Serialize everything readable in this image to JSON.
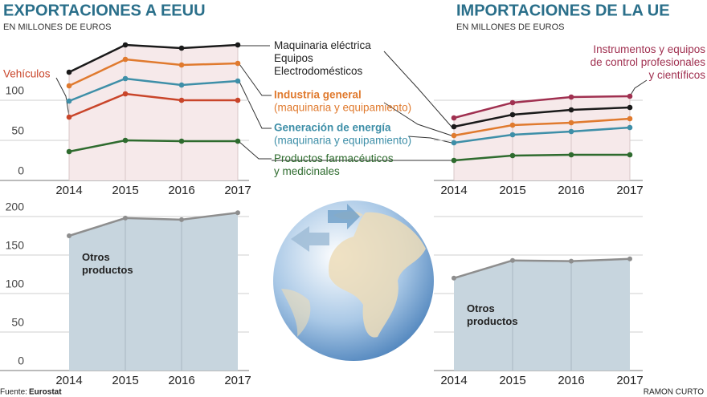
{
  "chart_data": [
    {
      "type": "line",
      "title": "EXPORTACIONES A EEUU",
      "subtitle": "EN MILLONES DE EUROS",
      "categories": [
        "2014",
        "2015",
        "2016",
        "2017"
      ],
      "ylim": [
        0,
        177
      ],
      "yticks": [
        0,
        50,
        100
      ],
      "grid": true,
      "tick_labels": true,
      "series": [
        {
          "name": "Maquinaria eléctrica\nEquipos\nElectrodomésticos",
          "color": "#1a1a1a",
          "values": [
            135,
            169,
            165,
            169
          ]
        },
        {
          "name": "Industria general",
          "detail": "(maquinaria y equipamiento)",
          "color": "#e07a2e",
          "values": [
            118,
            151,
            144,
            146
          ]
        },
        {
          "name": "Generación de energía",
          "detail": "(maquinaria y equipamiento)",
          "color": "#3e8fa8",
          "values": [
            99,
            127,
            119,
            124
          ]
        },
        {
          "name": "Vehículos",
          "color": "#c9452a",
          "values": [
            79,
            108,
            100,
            100
          ]
        },
        {
          "name": "Productos farmacéuticos\ny medicinales",
          "color": "#2e6b2e",
          "values": [
            36,
            50,
            49,
            49
          ]
        }
      ]
    },
    {
      "type": "line",
      "title": "IMPORTACIONES DE LA UE",
      "subtitle": "EN MILLONES DE EUROS",
      "categories": [
        "2014",
        "2015",
        "2016",
        "2017"
      ],
      "ylim": [
        0,
        177
      ],
      "yticks": [
        0,
        50,
        100
      ],
      "grid": true,
      "tick_labels": false,
      "series": [
        {
          "name": "Instrumentos y equipos\nde control profesionales\ny científicos",
          "color": "#a03050",
          "values": [
            78,
            97,
            104,
            105
          ]
        },
        {
          "color": "#1a1a1a",
          "values": [
            67,
            82,
            88,
            91
          ]
        },
        {
          "color": "#e07a2e",
          "values": [
            56,
            69,
            72,
            77
          ]
        },
        {
          "color": "#3e8fa8",
          "values": [
            47,
            57,
            61,
            66
          ]
        },
        {
          "color": "#2e6b2e",
          "values": [
            25,
            31,
            32,
            32
          ]
        }
      ]
    },
    {
      "type": "area",
      "label": "Otros\nproductos",
      "categories": [
        "2014",
        "2015",
        "2016",
        "2017"
      ],
      "values": [
        175,
        198,
        196,
        205
      ],
      "color": "#c7d5de",
      "line_color": "#8e8e8e",
      "ylim": [
        0,
        200
      ],
      "yticks": [
        0,
        50,
        100,
        150,
        200
      ],
      "grid": true,
      "tick_labels": true
    },
    {
      "type": "area",
      "label": "Otros\nproductos",
      "categories": [
        "2014",
        "2015",
        "2016",
        "2017"
      ],
      "values": [
        120,
        143,
        142,
        145
      ],
      "color": "#c7d5de",
      "line_color": "#8e8e8e",
      "ylim": [
        0,
        200
      ],
      "yticks": [
        0,
        50,
        100,
        150,
        200
      ],
      "grid": true,
      "tick_labels": false
    }
  ],
  "footer": {
    "source_label": "Fuente:",
    "source": "Eurostat",
    "author": "RAMON CURTO"
  }
}
